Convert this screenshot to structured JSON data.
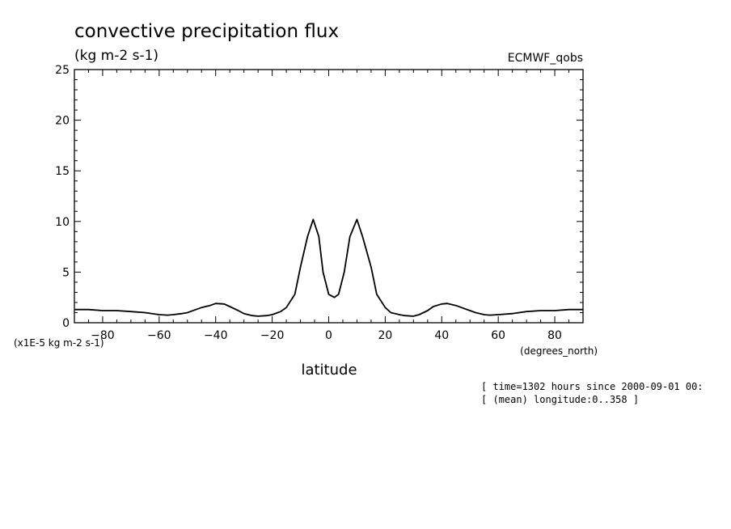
{
  "chart_data": {
    "type": "line",
    "title": "convective precipitation flux",
    "units": "(kg m-2 s-1)",
    "source": "ECMWF_qobs",
    "xlabel": "latitude",
    "xunits": "(degrees_north)",
    "yscale_label": "(x1E-5 kg m-2 s-1)",
    "xlim": [
      -90,
      90
    ],
    "ylim": [
      0,
      25
    ],
    "xticks": [
      -80,
      -60,
      -40,
      -20,
      0,
      20,
      40,
      60,
      80
    ],
    "yticks": [
      0,
      5,
      10,
      15,
      20,
      25
    ],
    "grid": false,
    "series": [
      {
        "x": [
          -90,
          -85,
          -80,
          -75,
          -70,
          -65,
          -60,
          -57,
          -55,
          -52,
          -50,
          -47,
          -45,
          -42,
          -40,
          -37,
          -35,
          -32,
          -30,
          -27,
          -25,
          -22,
          -20,
          -17,
          -15,
          -12,
          -10,
          -7.5,
          -5.5,
          -3.5,
          -2,
          0,
          2,
          3.5,
          5.5,
          7.5,
          10,
          12,
          15,
          17,
          20,
          22,
          25,
          27,
          30,
          32,
          35,
          37,
          40,
          42,
          45,
          47,
          50,
          52,
          55,
          57,
          60,
          65,
          70,
          75,
          80,
          85,
          90
        ],
        "y": [
          1.3,
          1.3,
          1.2,
          1.2,
          1.1,
          1.0,
          0.8,
          0.75,
          0.8,
          0.9,
          1.0,
          1.3,
          1.5,
          1.7,
          1.9,
          1.85,
          1.6,
          1.2,
          0.9,
          0.7,
          0.65,
          0.7,
          0.8,
          1.1,
          1.5,
          2.8,
          5.5,
          8.5,
          10.2,
          8.5,
          5.0,
          2.8,
          2.5,
          2.8,
          5.0,
          8.5,
          10.2,
          8.5,
          5.5,
          2.8,
          1.5,
          1.0,
          0.8,
          0.7,
          0.65,
          0.8,
          1.2,
          1.6,
          1.85,
          1.9,
          1.7,
          1.5,
          1.2,
          1.0,
          0.8,
          0.75,
          0.8,
          0.9,
          1.1,
          1.2,
          1.2,
          1.3,
          1.3
        ]
      }
    ]
  },
  "footer": {
    "line1": "[ time=1302 hours since 2000-09-01 00:",
    "line2": "[ (mean) longitude:0..358 ]"
  }
}
